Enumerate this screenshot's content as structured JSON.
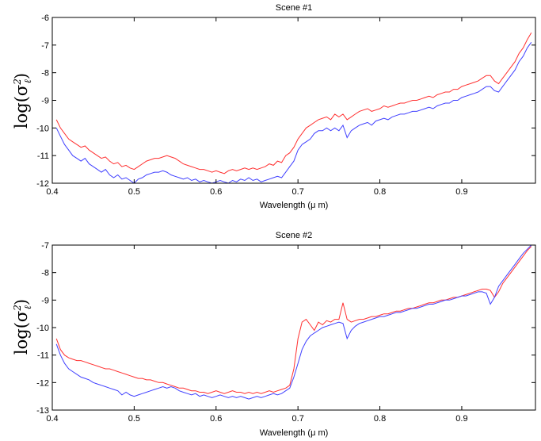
{
  "chart_data": [
    {
      "type": "line",
      "title": "Scene #1",
      "xlabel": "Wavelength (μ m)",
      "ylabel": "log(σ",
      "ylabel_sup": "2",
      "ylabel_sub": "ℓ",
      "ylabel_close": ")",
      "xlim": [
        0.4,
        0.99
      ],
      "ylim": [
        -12,
        -6
      ],
      "xticks": [
        0.4,
        0.5,
        0.6,
        0.7,
        0.8,
        0.9
      ],
      "xtick_labels": [
        "0.4",
        "0.5",
        "0.6",
        "0.7",
        "0.8",
        "0.9"
      ],
      "yticks": [
        -6,
        -7,
        -8,
        -9,
        -10,
        -11,
        -12
      ],
      "ytick_labels": [
        "-6",
        "-7",
        "-8",
        "-9",
        "-10",
        "-11",
        "-12"
      ],
      "series": [
        {
          "color": "#ff3030",
          "x": [
            0.405,
            0.41,
            0.415,
            0.42,
            0.425,
            0.43,
            0.435,
            0.44,
            0.445,
            0.45,
            0.455,
            0.46,
            0.465,
            0.47,
            0.475,
            0.48,
            0.485,
            0.49,
            0.495,
            0.5,
            0.505,
            0.51,
            0.515,
            0.52,
            0.525,
            0.53,
            0.535,
            0.54,
            0.545,
            0.55,
            0.555,
            0.56,
            0.565,
            0.57,
            0.575,
            0.58,
            0.585,
            0.59,
            0.595,
            0.6,
            0.605,
            0.61,
            0.615,
            0.62,
            0.625,
            0.63,
            0.635,
            0.64,
            0.645,
            0.65,
            0.655,
            0.66,
            0.665,
            0.67,
            0.675,
            0.68,
            0.685,
            0.69,
            0.695,
            0.7,
            0.705,
            0.71,
            0.715,
            0.72,
            0.725,
            0.73,
            0.735,
            0.74,
            0.745,
            0.75,
            0.755,
            0.76,
            0.765,
            0.77,
            0.775,
            0.78,
            0.785,
            0.79,
            0.795,
            0.8,
            0.805,
            0.81,
            0.815,
            0.82,
            0.825,
            0.83,
            0.835,
            0.84,
            0.845,
            0.85,
            0.855,
            0.86,
            0.865,
            0.87,
            0.875,
            0.88,
            0.885,
            0.89,
            0.895,
            0.9,
            0.905,
            0.91,
            0.915,
            0.92,
            0.925,
            0.93,
            0.935,
            0.94,
            0.945,
            0.95,
            0.955,
            0.96,
            0.965,
            0.97,
            0.975,
            0.98,
            0.985
          ],
          "y": [
            -9.7,
            -10,
            -10.2,
            -10.4,
            -10.5,
            -10.6,
            -10.7,
            -10.65,
            -10.8,
            -10.9,
            -11,
            -11.1,
            -11.05,
            -11.2,
            -11.3,
            -11.25,
            -11.4,
            -11.35,
            -11.45,
            -11.5,
            -11.4,
            -11.3,
            -11.2,
            -11.15,
            -11.1,
            -11.1,
            -11.05,
            -11,
            -11.05,
            -11.1,
            -11.2,
            -11.3,
            -11.35,
            -11.4,
            -11.45,
            -11.5,
            -11.5,
            -11.55,
            -11.6,
            -11.55,
            -11.6,
            -11.65,
            -11.55,
            -11.5,
            -11.55,
            -11.5,
            -11.45,
            -11.5,
            -11.45,
            -11.5,
            -11.45,
            -11.4,
            -11.3,
            -11.35,
            -11.2,
            -11.25,
            -11,
            -10.9,
            -10.7,
            -10.4,
            -10.2,
            -10,
            -9.9,
            -9.8,
            -9.7,
            -9.65,
            -9.6,
            -9.7,
            -9.5,
            -9.6,
            -9.5,
            -9.7,
            -9.6,
            -9.5,
            -9.4,
            -9.35,
            -9.3,
            -9.4,
            -9.35,
            -9.3,
            -9.2,
            -9.25,
            -9.2,
            -9.15,
            -9.1,
            -9.1,
            -9.05,
            -9,
            -9,
            -8.95,
            -8.9,
            -8.85,
            -8.9,
            -8.8,
            -8.75,
            -8.7,
            -8.7,
            -8.6,
            -8.6,
            -8.5,
            -8.45,
            -8.4,
            -8.35,
            -8.3,
            -8.2,
            -8.1,
            -8.1,
            -8.3,
            -8.4,
            -8.2,
            -8,
            -7.8,
            -7.6,
            -7.3,
            -7.1,
            -6.8,
            -6.55
          ]
        },
        {
          "color": "#4040ff",
          "x": [
            0.405,
            0.41,
            0.415,
            0.42,
            0.425,
            0.43,
            0.435,
            0.44,
            0.445,
            0.45,
            0.455,
            0.46,
            0.465,
            0.47,
            0.475,
            0.48,
            0.485,
            0.49,
            0.495,
            0.5,
            0.505,
            0.51,
            0.515,
            0.52,
            0.525,
            0.53,
            0.535,
            0.54,
            0.545,
            0.55,
            0.555,
            0.56,
            0.565,
            0.57,
            0.575,
            0.58,
            0.585,
            0.59,
            0.595,
            0.6,
            0.605,
            0.61,
            0.615,
            0.62,
            0.625,
            0.63,
            0.635,
            0.64,
            0.645,
            0.65,
            0.655,
            0.66,
            0.665,
            0.67,
            0.675,
            0.68,
            0.685,
            0.69,
            0.695,
            0.7,
            0.705,
            0.71,
            0.715,
            0.72,
            0.725,
            0.73,
            0.735,
            0.74,
            0.745,
            0.75,
            0.755,
            0.76,
            0.765,
            0.77,
            0.775,
            0.78,
            0.785,
            0.79,
            0.795,
            0.8,
            0.805,
            0.81,
            0.815,
            0.82,
            0.825,
            0.83,
            0.835,
            0.84,
            0.845,
            0.85,
            0.855,
            0.86,
            0.865,
            0.87,
            0.875,
            0.88,
            0.885,
            0.89,
            0.895,
            0.9,
            0.905,
            0.91,
            0.915,
            0.92,
            0.925,
            0.93,
            0.935,
            0.94,
            0.945,
            0.95,
            0.955,
            0.96,
            0.965,
            0.97,
            0.975,
            0.98,
            0.985
          ],
          "y": [
            -10,
            -10.3,
            -10.6,
            -10.8,
            -11,
            -11.1,
            -11.2,
            -11.1,
            -11.3,
            -11.4,
            -11.5,
            -11.6,
            -11.5,
            -11.7,
            -11.8,
            -11.7,
            -11.85,
            -11.8,
            -11.9,
            -12,
            -11.85,
            -11.8,
            -11.7,
            -11.65,
            -11.6,
            -11.6,
            -11.55,
            -11.6,
            -11.7,
            -11.75,
            -11.8,
            -11.85,
            -11.8,
            -11.9,
            -11.85,
            -11.95,
            -11.9,
            -11.95,
            -12,
            -11.95,
            -11.9,
            -11.95,
            -12,
            -11.9,
            -11.95,
            -11.85,
            -11.9,
            -11.8,
            -11.9,
            -11.85,
            -11.95,
            -11.9,
            -11.85,
            -11.8,
            -11.75,
            -11.8,
            -11.6,
            -11.4,
            -11.2,
            -10.8,
            -10.6,
            -10.5,
            -10.4,
            -10.2,
            -10.1,
            -10.1,
            -10,
            -10.1,
            -10,
            -10.1,
            -9.9,
            -10.35,
            -10.1,
            -10,
            -9.9,
            -9.85,
            -9.8,
            -9.9,
            -9.75,
            -9.7,
            -9.65,
            -9.7,
            -9.6,
            -9.55,
            -9.5,
            -9.5,
            -9.45,
            -9.4,
            -9.4,
            -9.35,
            -9.3,
            -9.25,
            -9.3,
            -9.2,
            -9.15,
            -9.1,
            -9.1,
            -9,
            -9,
            -8.9,
            -8.85,
            -8.8,
            -8.75,
            -8.7,
            -8.6,
            -8.5,
            -8.5,
            -8.65,
            -8.7,
            -8.5,
            -8.3,
            -8.1,
            -7.9,
            -7.6,
            -7.4,
            -7.1,
            -6.9
          ]
        }
      ]
    },
    {
      "type": "line",
      "title": "Scene #2",
      "xlabel": "Wavelength (μ m)",
      "ylabel": "log(σ",
      "ylabel_sup": "2",
      "ylabel_sub": "ℓ",
      "ylabel_close": ")",
      "xlim": [
        0.4,
        0.99
      ],
      "ylim": [
        -13,
        -7
      ],
      "xticks": [
        0.4,
        0.5,
        0.6,
        0.7,
        0.8,
        0.9
      ],
      "xtick_labels": [
        "0.4",
        "0.5",
        "0.6",
        "0.7",
        "0.8",
        "0.9"
      ],
      "yticks": [
        -7,
        -8,
        -9,
        -10,
        -11,
        -12,
        -13
      ],
      "ytick_labels": [
        "-7",
        "-8",
        "-9",
        "-10",
        "-11",
        "-12",
        "-13"
      ],
      "series": [
        {
          "color": "#ff3030",
          "x": [
            0.405,
            0.41,
            0.415,
            0.42,
            0.425,
            0.43,
            0.435,
            0.44,
            0.445,
            0.45,
            0.455,
            0.46,
            0.465,
            0.47,
            0.475,
            0.48,
            0.485,
            0.49,
            0.495,
            0.5,
            0.505,
            0.51,
            0.515,
            0.52,
            0.525,
            0.53,
            0.535,
            0.54,
            0.545,
            0.55,
            0.555,
            0.56,
            0.565,
            0.57,
            0.575,
            0.58,
            0.585,
            0.59,
            0.595,
            0.6,
            0.605,
            0.61,
            0.615,
            0.62,
            0.625,
            0.63,
            0.635,
            0.64,
            0.645,
            0.65,
            0.655,
            0.66,
            0.665,
            0.67,
            0.675,
            0.68,
            0.685,
            0.69,
            0.695,
            0.7,
            0.705,
            0.71,
            0.715,
            0.72,
            0.725,
            0.73,
            0.735,
            0.74,
            0.745,
            0.75,
            0.755,
            0.76,
            0.765,
            0.77,
            0.775,
            0.78,
            0.785,
            0.79,
            0.795,
            0.8,
            0.805,
            0.81,
            0.815,
            0.82,
            0.825,
            0.83,
            0.835,
            0.84,
            0.845,
            0.85,
            0.855,
            0.86,
            0.865,
            0.87,
            0.875,
            0.88,
            0.885,
            0.89,
            0.895,
            0.9,
            0.905,
            0.91,
            0.915,
            0.92,
            0.925,
            0.93,
            0.935,
            0.94,
            0.945,
            0.95,
            0.955,
            0.96,
            0.965,
            0.97,
            0.975,
            0.98,
            0.985
          ],
          "y": [
            -10.4,
            -10.8,
            -11,
            -11.1,
            -11.15,
            -11.2,
            -11.2,
            -11.25,
            -11.3,
            -11.35,
            -11.4,
            -11.45,
            -11.5,
            -11.5,
            -11.55,
            -11.6,
            -11.65,
            -11.7,
            -11.75,
            -11.8,
            -11.85,
            -11.85,
            -11.9,
            -11.9,
            -11.95,
            -12,
            -12,
            -12.05,
            -12.1,
            -12.15,
            -12.2,
            -12.2,
            -12.25,
            -12.3,
            -12.3,
            -12.35,
            -12.35,
            -12.4,
            -12.35,
            -12.3,
            -12.35,
            -12.4,
            -12.35,
            -12.3,
            -12.35,
            -12.35,
            -12.4,
            -12.35,
            -12.4,
            -12.35,
            -12.4,
            -12.35,
            -12.3,
            -12.35,
            -12.3,
            -12.25,
            -12.2,
            -12.1,
            -11.5,
            -10.4,
            -9.8,
            -9.7,
            -9.9,
            -10.1,
            -9.8,
            -9.9,
            -9.75,
            -9.8,
            -9.7,
            -9.7,
            -9.1,
            -9.7,
            -9.8,
            -9.75,
            -9.7,
            -9.7,
            -9.65,
            -9.6,
            -9.6,
            -9.55,
            -9.5,
            -9.5,
            -9.45,
            -9.4,
            -9.4,
            -9.35,
            -9.3,
            -9.3,
            -9.25,
            -9.2,
            -9.15,
            -9.1,
            -9.1,
            -9.05,
            -9,
            -9,
            -8.95,
            -8.9,
            -8.9,
            -8.85,
            -8.8,
            -8.75,
            -8.7,
            -8.65,
            -8.6,
            -8.6,
            -8.65,
            -8.9,
            -8.7,
            -8.4,
            -8.2,
            -8,
            -7.8,
            -7.6,
            -7.4,
            -7.2,
            -7.05
          ]
        },
        {
          "color": "#4040ff",
          "x": [
            0.405,
            0.41,
            0.415,
            0.42,
            0.425,
            0.43,
            0.435,
            0.44,
            0.445,
            0.45,
            0.455,
            0.46,
            0.465,
            0.47,
            0.475,
            0.48,
            0.485,
            0.49,
            0.495,
            0.5,
            0.505,
            0.51,
            0.515,
            0.52,
            0.525,
            0.53,
            0.535,
            0.54,
            0.545,
            0.55,
            0.555,
            0.56,
            0.565,
            0.57,
            0.575,
            0.58,
            0.585,
            0.59,
            0.595,
            0.6,
            0.605,
            0.61,
            0.615,
            0.62,
            0.625,
            0.63,
            0.635,
            0.64,
            0.645,
            0.65,
            0.655,
            0.66,
            0.665,
            0.67,
            0.675,
            0.68,
            0.685,
            0.69,
            0.695,
            0.7,
            0.705,
            0.71,
            0.715,
            0.72,
            0.725,
            0.73,
            0.735,
            0.74,
            0.745,
            0.75,
            0.755,
            0.76,
            0.765,
            0.77,
            0.775,
            0.78,
            0.785,
            0.79,
            0.795,
            0.8,
            0.805,
            0.81,
            0.815,
            0.82,
            0.825,
            0.83,
            0.835,
            0.84,
            0.845,
            0.85,
            0.855,
            0.86,
            0.865,
            0.87,
            0.875,
            0.88,
            0.885,
            0.89,
            0.895,
            0.9,
            0.905,
            0.91,
            0.915,
            0.92,
            0.925,
            0.93,
            0.935,
            0.94,
            0.945,
            0.95,
            0.955,
            0.96,
            0.965,
            0.97,
            0.975,
            0.98,
            0.985
          ],
          "y": [
            -10.6,
            -11,
            -11.3,
            -11.5,
            -11.6,
            -11.7,
            -11.8,
            -11.85,
            -11.9,
            -12,
            -12.05,
            -12.1,
            -12.15,
            -12.2,
            -12.25,
            -12.3,
            -12.45,
            -12.35,
            -12.45,
            -12.5,
            -12.45,
            -12.4,
            -12.35,
            -12.3,
            -12.25,
            -12.2,
            -12.15,
            -12.2,
            -12.15,
            -12.2,
            -12.3,
            -12.35,
            -12.4,
            -12.45,
            -12.4,
            -12.5,
            -12.45,
            -12.5,
            -12.55,
            -12.5,
            -12.45,
            -12.5,
            -12.55,
            -12.5,
            -12.55,
            -12.5,
            -12.55,
            -12.6,
            -12.55,
            -12.5,
            -12.55,
            -12.5,
            -12.45,
            -12.4,
            -12.45,
            -12.4,
            -12.3,
            -12.2,
            -11.8,
            -11.3,
            -10.8,
            -10.5,
            -10.3,
            -10.2,
            -10.1,
            -10,
            -9.95,
            -9.9,
            -9.85,
            -9.8,
            -9.85,
            -10.4,
            -10.1,
            -9.95,
            -9.85,
            -9.8,
            -9.75,
            -9.7,
            -9.65,
            -9.6,
            -9.6,
            -9.55,
            -9.5,
            -9.45,
            -9.45,
            -9.4,
            -9.35,
            -9.3,
            -9.3,
            -9.25,
            -9.2,
            -9.15,
            -9.15,
            -9.1,
            -9.05,
            -9,
            -9,
            -8.95,
            -8.9,
            -8.85,
            -8.85,
            -8.8,
            -8.75,
            -8.7,
            -8.7,
            -8.75,
            -9.15,
            -8.9,
            -8.5,
            -8.3,
            -8.1,
            -7.9,
            -7.7,
            -7.5,
            -7.3,
            -7.15,
            -7
          ]
        }
      ]
    }
  ]
}
